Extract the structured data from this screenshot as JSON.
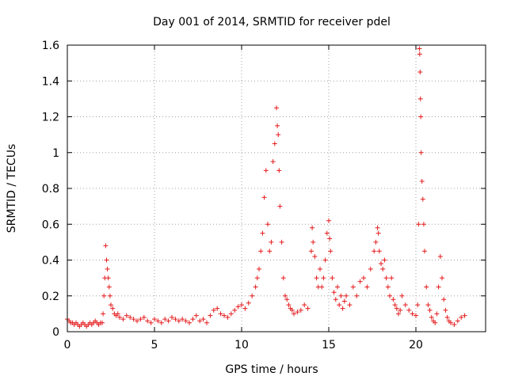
{
  "chart_data": {
    "type": "scatter",
    "title": "Day 001 of 2014, SRMTID for receiver pdel",
    "xlabel": "GPS time / hours",
    "ylabel": "SRMTID / TECUs",
    "xlim": [
      0,
      24
    ],
    "ylim": [
      0,
      1.6
    ],
    "xticks": [
      0,
      5,
      10,
      15,
      20
    ],
    "yticks": [
      0,
      0.2,
      0.4,
      0.6,
      0.8,
      1,
      1.2,
      1.4,
      1.6
    ],
    "xtick_labels": [
      "0",
      "5",
      "10",
      "15",
      "20"
    ],
    "ytick_labels": [
      "0",
      "0.2",
      "0.4",
      "0.6",
      "0.8",
      "1",
      "1.2",
      "1.4",
      "1.6"
    ],
    "grid": true,
    "marker": "+",
    "color": "#e41a1c",
    "series": [
      {
        "name": "SRMTID",
        "x": [
          0.0,
          0.1,
          0.2,
          0.3,
          0.4,
          0.5,
          0.6,
          0.7,
          0.8,
          0.9,
          1.0,
          1.1,
          1.2,
          1.3,
          1.4,
          1.5,
          1.6,
          1.7,
          1.8,
          1.9,
          2.0,
          2.05,
          2.1,
          2.15,
          2.2,
          2.25,
          2.3,
          2.35,
          2.4,
          2.45,
          2.5,
          2.6,
          2.7,
          2.8,
          2.9,
          3.0,
          3.2,
          3.4,
          3.6,
          3.8,
          4.0,
          4.2,
          4.4,
          4.6,
          4.8,
          5.0,
          5.2,
          5.4,
          5.6,
          5.8,
          6.0,
          6.2,
          6.4,
          6.6,
          6.8,
          7.0,
          7.2,
          7.4,
          7.6,
          7.8,
          8.0,
          8.2,
          8.4,
          8.6,
          8.8,
          9.0,
          9.2,
          9.4,
          9.6,
          9.8,
          10.0,
          10.2,
          10.4,
          10.6,
          10.8,
          10.9,
          11.0,
          11.1,
          11.2,
          11.3,
          11.4,
          11.5,
          11.6,
          11.7,
          11.8,
          11.9,
          12.0,
          12.05,
          12.1,
          12.15,
          12.2,
          12.3,
          12.4,
          12.5,
          12.6,
          12.7,
          12.8,
          12.9,
          13.0,
          13.2,
          13.4,
          13.6,
          13.8,
          14.0,
          14.05,
          14.1,
          14.2,
          14.3,
          14.4,
          14.5,
          14.6,
          14.7,
          14.8,
          14.9,
          15.0,
          15.05,
          15.1,
          15.2,
          15.3,
          15.4,
          15.5,
          15.6,
          15.7,
          15.8,
          15.9,
          16.0,
          16.2,
          16.4,
          16.6,
          16.8,
          17.0,
          17.2,
          17.4,
          17.6,
          17.7,
          17.8,
          17.85,
          17.9,
          18.0,
          18.1,
          18.2,
          18.3,
          18.4,
          18.5,
          18.6,
          18.7,
          18.8,
          18.9,
          19.0,
          19.1,
          19.2,
          19.4,
          19.6,
          19.8,
          20.0,
          20.1,
          20.15,
          20.2,
          20.22,
          20.24,
          20.26,
          20.28,
          20.3,
          20.35,
          20.4,
          20.45,
          20.5,
          20.6,
          20.7,
          20.8,
          20.9,
          21.0,
          21.1,
          21.2,
          21.3,
          21.4,
          21.5,
          21.6,
          21.7,
          21.8,
          21.9,
          22.0,
          22.2,
          22.4,
          22.6,
          22.8
        ],
        "y": [
          0.07,
          0.06,
          0.05,
          0.05,
          0.04,
          0.05,
          0.04,
          0.03,
          0.04,
          0.05,
          0.04,
          0.03,
          0.04,
          0.05,
          0.04,
          0.05,
          0.06,
          0.05,
          0.04,
          0.05,
          0.05,
          0.1,
          0.2,
          0.3,
          0.48,
          0.4,
          0.35,
          0.3,
          0.25,
          0.2,
          0.15,
          0.13,
          0.1,
          0.09,
          0.1,
          0.08,
          0.07,
          0.09,
          0.08,
          0.07,
          0.06,
          0.07,
          0.08,
          0.06,
          0.05,
          0.07,
          0.06,
          0.05,
          0.07,
          0.06,
          0.08,
          0.07,
          0.06,
          0.07,
          0.06,
          0.05,
          0.07,
          0.09,
          0.06,
          0.07,
          0.05,
          0.09,
          0.12,
          0.13,
          0.1,
          0.09,
          0.08,
          0.1,
          0.12,
          0.14,
          0.15,
          0.13,
          0.16,
          0.2,
          0.25,
          0.3,
          0.35,
          0.45,
          0.55,
          0.75,
          0.9,
          0.6,
          0.45,
          0.5,
          0.95,
          1.05,
          1.25,
          1.15,
          1.1,
          0.9,
          0.7,
          0.5,
          0.3,
          0.2,
          0.18,
          0.15,
          0.13,
          0.12,
          0.1,
          0.11,
          0.12,
          0.15,
          0.13,
          0.45,
          0.58,
          0.5,
          0.42,
          0.3,
          0.25,
          0.35,
          0.25,
          0.3,
          0.4,
          0.55,
          0.62,
          0.52,
          0.45,
          0.3,
          0.22,
          0.18,
          0.25,
          0.15,
          0.2,
          0.13,
          0.17,
          0.2,
          0.15,
          0.25,
          0.2,
          0.28,
          0.3,
          0.25,
          0.35,
          0.45,
          0.5,
          0.58,
          0.55,
          0.45,
          0.38,
          0.35,
          0.4,
          0.3,
          0.25,
          0.2,
          0.3,
          0.18,
          0.15,
          0.13,
          0.1,
          0.12,
          0.2,
          0.15,
          0.12,
          0.1,
          0.09,
          0.15,
          0.6,
          1.58,
          1.55,
          1.45,
          1.3,
          1.2,
          1.0,
          0.84,
          0.74,
          0.6,
          0.45,
          0.25,
          0.15,
          0.12,
          0.08,
          0.06,
          0.05,
          0.1,
          0.25,
          0.42,
          0.3,
          0.18,
          0.12,
          0.08,
          0.06,
          0.05,
          0.04,
          0.06,
          0.08,
          0.09
        ]
      }
    ]
  }
}
